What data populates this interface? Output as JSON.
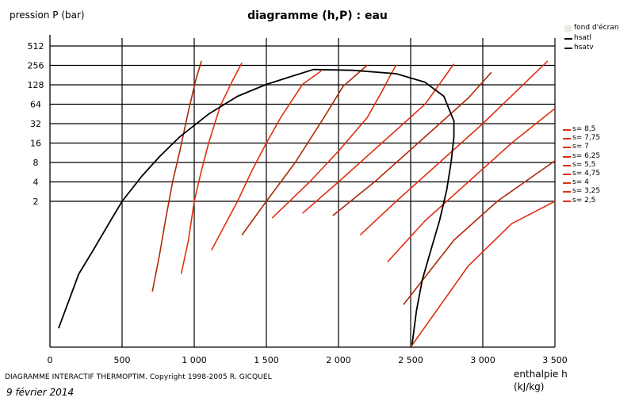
{
  "chart_data": {
    "type": "line",
    "title": "diagramme (h,P) : eau",
    "ylabel": "pression  P (bar)",
    "xlabel": "enthalpie  h",
    "xunit": "(kJ/kg)",
    "x_ticks": [
      0,
      500,
      1000,
      1500,
      2000,
      2500,
      3000,
      3500
    ],
    "x_tick_labels": [
      "0",
      "500",
      "1 000",
      "1 500",
      "2 000",
      "2 500",
      "3 000",
      "3 500"
    ],
    "y_ticks": [
      2,
      4,
      8,
      16,
      32,
      64,
      128,
      256,
      512
    ],
    "y_tick_labels": [
      "2",
      "4",
      "8",
      "16",
      "32",
      "64",
      "128",
      "256",
      "512"
    ],
    "xlim": [
      0,
      3500
    ],
    "y_scale": "log2",
    "ylim_note": "bottom axis below the lowest tick label 2",
    "grid": true,
    "colors": {
      "saturation": "#000000",
      "isentrope": "#e03010",
      "isentrope_alt": "#b02808",
      "background_swatch": "#ebeae2"
    },
    "saturation_series": [
      {
        "name": "hsatl",
        "points": [
          [
            60,
            0.0215
          ],
          [
            200,
            0.15
          ],
          [
            300,
            0.35
          ],
          [
            420,
            1.0
          ],
          [
            500,
            2.0
          ],
          [
            640,
            5.0
          ],
          [
            762,
            10
          ],
          [
            900,
            20
          ],
          [
            1100,
            45
          ],
          [
            1300,
            85
          ],
          [
            1500,
            130
          ],
          [
            1700,
            180
          ],
          [
            1826,
            221
          ]
        ]
      },
      {
        "name": "hsatv",
        "points": [
          [
            1826,
            221
          ],
          [
            2100,
            215
          ],
          [
            2400,
            190
          ],
          [
            2600,
            140
          ],
          [
            2730,
            85
          ],
          [
            2800,
            35
          ],
          [
            2800,
            20
          ],
          [
            2780,
            8
          ],
          [
            2750,
            3.0
          ],
          [
            2700,
            1.0
          ],
          [
            2640,
            0.35
          ],
          [
            2580,
            0.12
          ],
          [
            2540,
            0.04
          ],
          [
            2510,
            0.012
          ]
        ]
      }
    ],
    "isentropes": [
      {
        "name": "s= 8,5",
        "points": [
          [
            2500,
            0.01
          ],
          [
            2900,
            0.2
          ],
          [
            3200,
            0.9
          ],
          [
            3500,
            2.0
          ]
        ]
      },
      {
        "name": "s= 7,75",
        "points": [
          [
            2450,
            0.05
          ],
          [
            2800,
            0.5
          ],
          [
            3100,
            2.0
          ],
          [
            3500,
            8.5
          ]
        ]
      },
      {
        "name": "s= 7",
        "points": [
          [
            2340,
            0.23
          ],
          [
            2600,
            1.0
          ],
          [
            2900,
            4.0
          ],
          [
            3200,
            16
          ],
          [
            3500,
            55
          ]
        ]
      },
      {
        "name": "s= 6,25",
        "points": [
          [
            2150,
            0.6
          ],
          [
            2400,
            2.0
          ],
          [
            2700,
            8
          ],
          [
            3000,
            32
          ],
          [
            3450,
            300
          ]
        ]
      },
      {
        "name": "s= 5,5",
        "points": [
          [
            1960,
            1.2
          ],
          [
            2250,
            4.0
          ],
          [
            2600,
            20
          ],
          [
            2900,
            80
          ],
          [
            3060,
            200
          ]
        ]
      },
      {
        "name": "s= 4,75",
        "points": [
          [
            1750,
            1.3
          ],
          [
            2000,
            4.0
          ],
          [
            2300,
            16
          ],
          [
            2600,
            64
          ],
          [
            2800,
            270
          ]
        ]
      },
      {
        "name": "s= 4",
        "points": [
          [
            1540,
            1.1
          ],
          [
            1800,
            4.0
          ],
          [
            2000,
            12
          ],
          [
            2200,
            40
          ],
          [
            2300,
            100
          ],
          [
            2360,
            180
          ],
          [
            2400,
            260
          ]
        ]
      },
      {
        "name": "s= 3,25",
        "points": [
          [
            1330,
            0.6
          ],
          [
            1500,
            2.0
          ],
          [
            1700,
            8.0
          ],
          [
            1900,
            40
          ],
          [
            2030,
            120
          ],
          [
            2200,
            260
          ]
        ]
      },
      {
        "name": "s= 2,5",
        "points": [
          [
            1120,
            0.35
          ],
          [
            1300,
            2.0
          ],
          [
            1400,
            6.0
          ],
          [
            1500,
            16
          ],
          [
            1600,
            40
          ],
          [
            1750,
            130
          ],
          [
            1880,
            210
          ]
        ]
      },
      {
        "name": "",
        "points": [
          [
            910,
            0.15
          ],
          [
            960,
            0.5
          ],
          [
            1000,
            2.0
          ],
          [
            1050,
            6.0
          ],
          [
            1100,
            16
          ],
          [
            1180,
            60
          ],
          [
            1260,
            140
          ],
          [
            1330,
            280
          ]
        ]
      },
      {
        "name": "",
        "points": [
          [
            710,
            0.08
          ],
          [
            760,
            0.3
          ],
          [
            800,
            1.0
          ],
          [
            850,
            4.0
          ],
          [
            900,
            12
          ],
          [
            960,
            50
          ],
          [
            1010,
            150
          ],
          [
            1050,
            300
          ]
        ]
      }
    ]
  },
  "legend": {
    "background_label": "fond d'écran",
    "saturation_labels": [
      "hsatl",
      "hsatv"
    ],
    "isentrope_labels": [
      "s= 8,5",
      "s= 7,75",
      "s= 7",
      "s= 6,25",
      "s= 5,5",
      "s= 4,75",
      "s= 4",
      "s= 3,25",
      "s= 2,5"
    ]
  },
  "footer": "DIAGRAMME INTERACTIF THERMOPTIM.   Copyright 1998-2005   R. GICQUEL",
  "date": "9 février 2014"
}
